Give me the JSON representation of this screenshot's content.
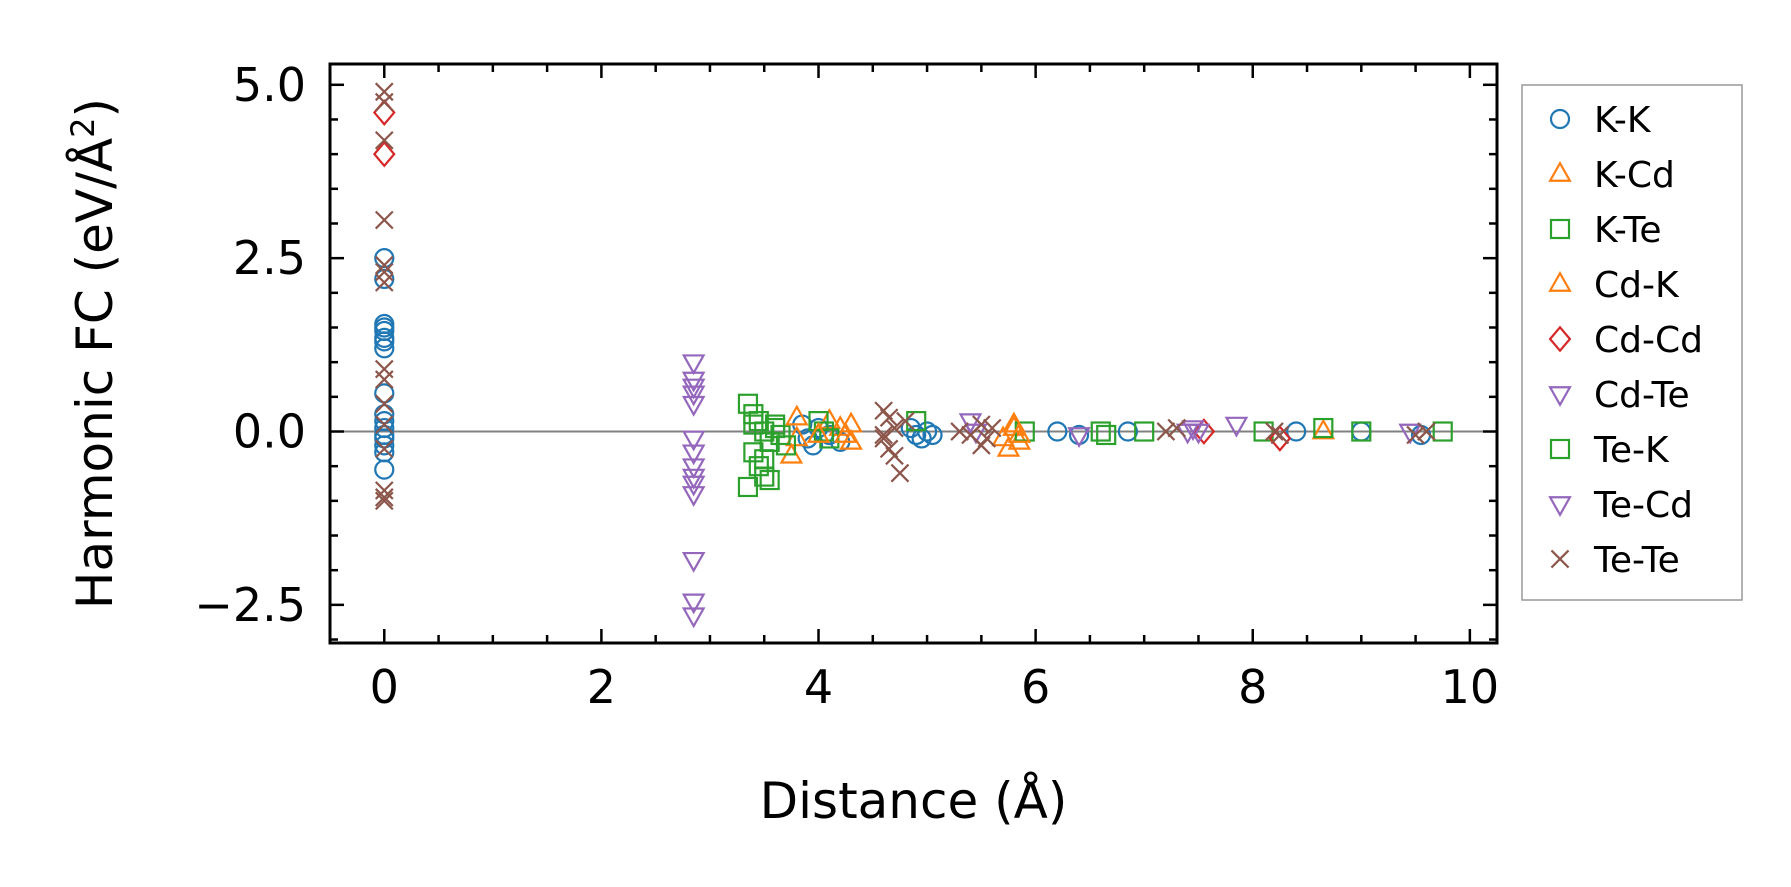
{
  "chart_data": {
    "type": "scatter",
    "title": "",
    "xlabel": "Distance (Å)",
    "ylabel_main": "Harmonic FC (eV/Å",
    "ylabel_sup": "2",
    "ylabel_close": ")",
    "xlim": [
      -0.5,
      10.25
    ],
    "ylim": [
      -3.05,
      5.3
    ],
    "xticks": [
      0,
      2,
      4,
      6,
      8,
      10
    ],
    "xtick_labels": [
      "0",
      "2",
      "4",
      "6",
      "8",
      "10"
    ],
    "yticks": [
      -2.5,
      0.0,
      2.5,
      5.0
    ],
    "ytick_labels": [
      "−2.5",
      "0.0",
      "2.5",
      "5.0"
    ],
    "zero_line": true,
    "legend_position": "outside-right",
    "series": [
      {
        "name": "K-K",
        "color": "#1f77b4",
        "marker": "circle",
        "points": [
          [
            0,
            2.5
          ],
          [
            0,
            2.2
          ],
          [
            0,
            1.55
          ],
          [
            0,
            1.5
          ],
          [
            0,
            1.45
          ],
          [
            0,
            1.35
          ],
          [
            0,
            1.3
          ],
          [
            0,
            1.2
          ],
          [
            0,
            0.55
          ],
          [
            0,
            0.25
          ],
          [
            0,
            0.15
          ],
          [
            0,
            0.05
          ],
          [
            0,
            -0.05
          ],
          [
            0,
            -0.1
          ],
          [
            0,
            -0.2
          ],
          [
            0,
            -0.3
          ],
          [
            0,
            -0.55
          ],
          [
            3.85,
            0.1
          ],
          [
            3.9,
            -0.1
          ],
          [
            3.95,
            -0.2
          ],
          [
            4.0,
            0.05
          ],
          [
            4.1,
            -0.05
          ],
          [
            4.2,
            -0.15
          ],
          [
            4.85,
            0.05
          ],
          [
            4.9,
            -0.05
          ],
          [
            4.95,
            -0.1
          ],
          [
            5.0,
            0.0
          ],
          [
            5.05,
            -0.05
          ],
          [
            6.2,
            0.0
          ],
          [
            6.4,
            -0.05
          ],
          [
            6.85,
            0.0
          ],
          [
            8.4,
            0.0
          ],
          [
            9.0,
            0.0
          ],
          [
            9.55,
            -0.05
          ]
        ]
      },
      {
        "name": "K-Cd",
        "color": "#ff7f0e",
        "marker": "triangle-up",
        "points": [
          [
            3.75,
            -0.35
          ],
          [
            3.8,
            -0.1
          ],
          [
            4.1,
            0.15
          ],
          [
            4.2,
            0.05
          ],
          [
            4.3,
            0.1
          ],
          [
            4.3,
            -0.15
          ],
          [
            5.7,
            -0.1
          ],
          [
            5.75,
            -0.25
          ],
          [
            5.8,
            0.05
          ],
          [
            5.85,
            -0.15
          ],
          [
            8.65,
            0.0
          ]
        ]
      },
      {
        "name": "K-Te",
        "color": "#2ca02c",
        "marker": "square",
        "points": [
          [
            3.35,
            0.4
          ],
          [
            3.4,
            0.25
          ],
          [
            3.45,
            0.15
          ],
          [
            3.5,
            0.0
          ],
          [
            3.55,
            -0.15
          ],
          [
            3.4,
            -0.3
          ],
          [
            3.45,
            -0.5
          ],
          [
            3.5,
            -0.65
          ],
          [
            3.35,
            -0.8
          ],
          [
            3.6,
            0.1
          ],
          [
            3.65,
            -0.05
          ],
          [
            3.7,
            -0.2
          ],
          [
            4.0,
            0.15
          ],
          [
            4.05,
            0.0
          ],
          [
            4.1,
            -0.1
          ],
          [
            4.9,
            0.15
          ],
          [
            5.9,
            0.0
          ],
          [
            6.6,
            0.0
          ],
          [
            7.0,
            0.0
          ],
          [
            8.1,
            0.0
          ],
          [
            8.65,
            0.05
          ],
          [
            9.0,
            0.0
          ],
          [
            9.75,
            0.0
          ]
        ]
      },
      {
        "name": "Cd-K",
        "color": "#ff7f0e",
        "marker": "triangle-up",
        "points": [
          [
            3.8,
            0.2
          ],
          [
            4.0,
            -0.05
          ],
          [
            4.25,
            -0.05
          ],
          [
            5.8,
            0.1
          ],
          [
            5.85,
            -0.05
          ]
        ]
      },
      {
        "name": "Cd-Cd",
        "color": "#d62728",
        "marker": "diamond",
        "points": [
          [
            0,
            4.6
          ],
          [
            0,
            4.0
          ],
          [
            7.55,
            0.0
          ],
          [
            8.25,
            -0.1
          ]
        ]
      },
      {
        "name": "Cd-Te",
        "color": "#9467bd",
        "marker": "triangle-down",
        "points": [
          [
            2.85,
            1.0
          ],
          [
            2.85,
            0.75
          ],
          [
            2.85,
            0.65
          ],
          [
            2.85,
            0.4
          ],
          [
            2.85,
            -0.1
          ],
          [
            2.85,
            -0.3
          ],
          [
            2.85,
            -0.5
          ],
          [
            2.85,
            -0.65
          ],
          [
            2.85,
            -0.9
          ],
          [
            2.85,
            -1.85
          ],
          [
            2.85,
            -2.45
          ],
          [
            2.85,
            -2.65
          ],
          [
            5.4,
            0.15
          ],
          [
            6.4,
            -0.05
          ],
          [
            7.4,
            0.0
          ],
          [
            7.45,
            0.05
          ],
          [
            7.85,
            0.1
          ],
          [
            9.45,
            0.0
          ]
        ]
      },
      {
        "name": "Te-K",
        "color": "#2ca02c",
        "marker": "square",
        "points": [
          [
            3.4,
            0.1
          ],
          [
            3.5,
            -0.4
          ],
          [
            3.55,
            -0.7
          ],
          [
            3.6,
            0.05
          ],
          [
            6.65,
            -0.05
          ]
        ]
      },
      {
        "name": "Te-Cd",
        "color": "#9467bd",
        "marker": "triangle-down",
        "points": [
          [
            2.85,
            0.55
          ],
          [
            2.85,
            -0.75
          ],
          [
            5.45,
            0.0
          ],
          [
            7.5,
            0.0
          ]
        ]
      },
      {
        "name": "Te-Te",
        "color": "#8c564b",
        "marker": "x",
        "points": [
          [
            0,
            4.9
          ],
          [
            0,
            4.75
          ],
          [
            0,
            4.2
          ],
          [
            0,
            3.05
          ],
          [
            0,
            2.4
          ],
          [
            0,
            2.3
          ],
          [
            0,
            2.15
          ],
          [
            0,
            0.9
          ],
          [
            0,
            0.75
          ],
          [
            0,
            0.4
          ],
          [
            0,
            0.1
          ],
          [
            0,
            -0.25
          ],
          [
            0,
            -0.85
          ],
          [
            0,
            -0.95
          ],
          [
            0,
            -1.0
          ],
          [
            4.6,
            0.3
          ],
          [
            4.65,
            0.2
          ],
          [
            4.7,
            0.05
          ],
          [
            4.6,
            -0.1
          ],
          [
            4.65,
            -0.25
          ],
          [
            4.7,
            -0.35
          ],
          [
            4.75,
            -0.6
          ],
          [
            4.8,
            0.15
          ],
          [
            4.6,
            -0.05
          ],
          [
            5.3,
            0.0
          ],
          [
            5.4,
            -0.05
          ],
          [
            5.5,
            0.1
          ],
          [
            5.5,
            -0.2
          ],
          [
            5.55,
            -0.1
          ],
          [
            5.6,
            0.05
          ],
          [
            7.2,
            0.0
          ],
          [
            7.3,
            0.05
          ],
          [
            8.2,
            0.0
          ],
          [
            8.25,
            -0.05
          ],
          [
            9.5,
            -0.05
          ],
          [
            9.6,
            0.0
          ]
        ]
      }
    ]
  }
}
